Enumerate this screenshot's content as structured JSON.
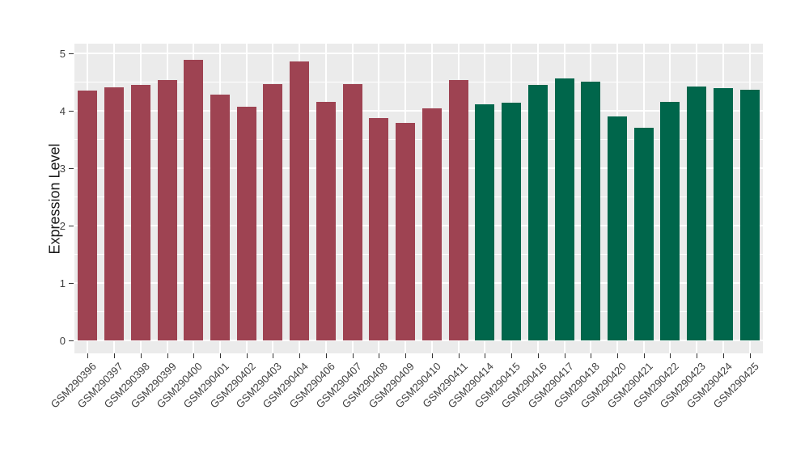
{
  "chart_data": {
    "type": "bar",
    "title": "",
    "xlabel": "",
    "ylabel": "Expression Level",
    "ylim": [
      0,
      5.15
    ],
    "yticks": [
      0,
      1,
      2,
      3,
      4,
      5
    ],
    "minor_gridlines": [
      0.5,
      1.5,
      2.5,
      3.5,
      4.5
    ],
    "grid": "on",
    "legend": "none",
    "categories": [
      "GSM290396",
      "GSM290397",
      "GSM290398",
      "GSM290399",
      "GSM290400",
      "GSM290401",
      "GSM290402",
      "GSM290403",
      "GSM290404",
      "GSM290406",
      "GSM290407",
      "GSM290408",
      "GSM290409",
      "GSM290410",
      "GSM290411",
      "GSM290414",
      "GSM290415",
      "GSM290416",
      "GSM290417",
      "GSM290418",
      "GSM290420",
      "GSM290421",
      "GSM290422",
      "GSM290423",
      "GSM290424",
      "GSM290425"
    ],
    "values": [
      4.35,
      4.41,
      4.45,
      4.53,
      4.89,
      4.28,
      4.07,
      4.47,
      4.86,
      4.15,
      4.47,
      3.88,
      3.79,
      4.04,
      4.53,
      4.11,
      4.14,
      4.45,
      4.56,
      4.51,
      3.9,
      3.7,
      4.15,
      4.42,
      4.4,
      4.36
    ],
    "series": [
      {
        "name": "group-1-maroon",
        "color": "#9E4352",
        "first_category": "GSM290396",
        "last_category": "GSM290411",
        "bar_count": 15
      },
      {
        "name": "group-2-green",
        "color": "#00664B",
        "first_category": "GSM290414",
        "last_category": "GSM290425",
        "bar_count": 11
      }
    ],
    "bar_group_index": [
      0,
      0,
      0,
      0,
      0,
      0,
      0,
      0,
      0,
      0,
      0,
      0,
      0,
      0,
      0,
      1,
      1,
      1,
      1,
      1,
      1,
      1,
      1,
      1,
      1,
      1
    ],
    "colors": {
      "bar_maroon": "#9E4352",
      "bar_green": "#00664B",
      "panel_background": "#EBEBEB",
      "gridline": "#FFFFFF",
      "tick_mark": "#333333",
      "axis_text": "#404040",
      "axis_title": "#1A1A1A",
      "figure_background": "#FFFFFF"
    }
  }
}
